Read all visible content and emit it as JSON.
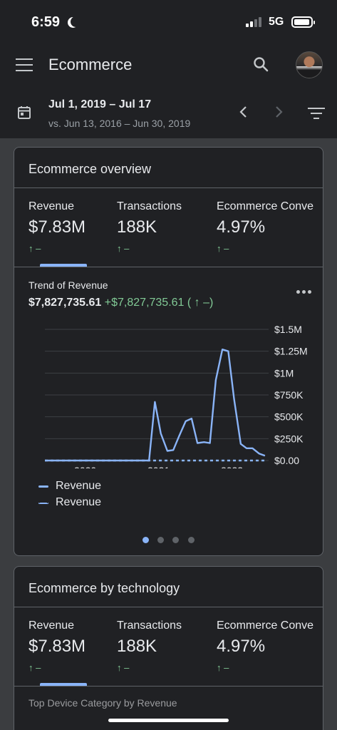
{
  "status_bar": {
    "time": "6:59",
    "network": "5G"
  },
  "app_bar": {
    "title": "Ecommerce",
    "date_range": "Jul 1, 2019 – Jul 17",
    "compare_range": "vs. Jun 13, 2016 – Jun 30, 2019"
  },
  "overview_card": {
    "title": "Ecommerce overview",
    "metrics": [
      {
        "label": "Revenue",
        "value": "$7.83M",
        "change": "↑ –"
      },
      {
        "label": "Transactions",
        "value": "188K",
        "change": "↑ –"
      },
      {
        "label": "Ecommerce Conve",
        "value": "4.97%",
        "change": "↑ –"
      }
    ],
    "trend_title": "Trend of Revenue",
    "trend_total": "$7,827,735.61",
    "trend_delta": "+$7,827,735.61 ( ↑ –)",
    "legend": [
      "Revenue",
      "Revenue"
    ]
  },
  "technology_card": {
    "title": "Ecommerce by technology",
    "metrics": [
      {
        "label": "Revenue",
        "value": "$7.83M",
        "change": "↑ –"
      },
      {
        "label": "Transactions",
        "value": "188K",
        "change": "↑ –"
      },
      {
        "label": "Ecommerce Conve",
        "value": "4.97%",
        "change": "↑ –"
      }
    ],
    "peek_text": "Top Device Category by Revenue"
  },
  "colors": {
    "accent": "#8ab4f8",
    "positive": "#81c995",
    "background": "#202124"
  },
  "chart_data": {
    "type": "line",
    "title": "Trend of Revenue",
    "xlabel": "",
    "ylabel": "",
    "x_tick_labels": [
      "2020",
      "2021",
      "2022"
    ],
    "y_tick_labels": [
      "$1.5M",
      "$1.25M",
      "$1M",
      "$750K",
      "$500K",
      "$250K",
      "$0.00"
    ],
    "ylim": [
      0,
      1500000
    ],
    "xlim": [
      2019.5,
      2022.55
    ],
    "grid": true,
    "legend": "bottom-left",
    "series": [
      {
        "name": "Revenue",
        "style": "solid",
        "x": [
          2019.5,
          2019.75,
          2020.0,
          2020.25,
          2020.5,
          2020.75,
          2020.83,
          2020.92,
          2021.0,
          2021.08,
          2021.17,
          2021.25,
          2021.33,
          2021.42,
          2021.5,
          2021.58,
          2021.67,
          2021.75,
          2021.83,
          2021.92,
          2022.0,
          2022.08,
          2022.17,
          2022.25,
          2022.33,
          2022.42,
          2022.5
        ],
        "y": [
          0,
          0,
          0,
          0,
          0,
          0,
          0,
          0,
          670000,
          310000,
          110000,
          120000,
          280000,
          450000,
          480000,
          200000,
          210000,
          200000,
          920000,
          1270000,
          1250000,
          700000,
          190000,
          140000,
          140000,
          80000,
          55000
        ]
      },
      {
        "name": "Revenue",
        "style": "dashed",
        "x": [
          2019.5,
          2022.5
        ],
        "y": [
          0,
          0
        ]
      }
    ]
  }
}
